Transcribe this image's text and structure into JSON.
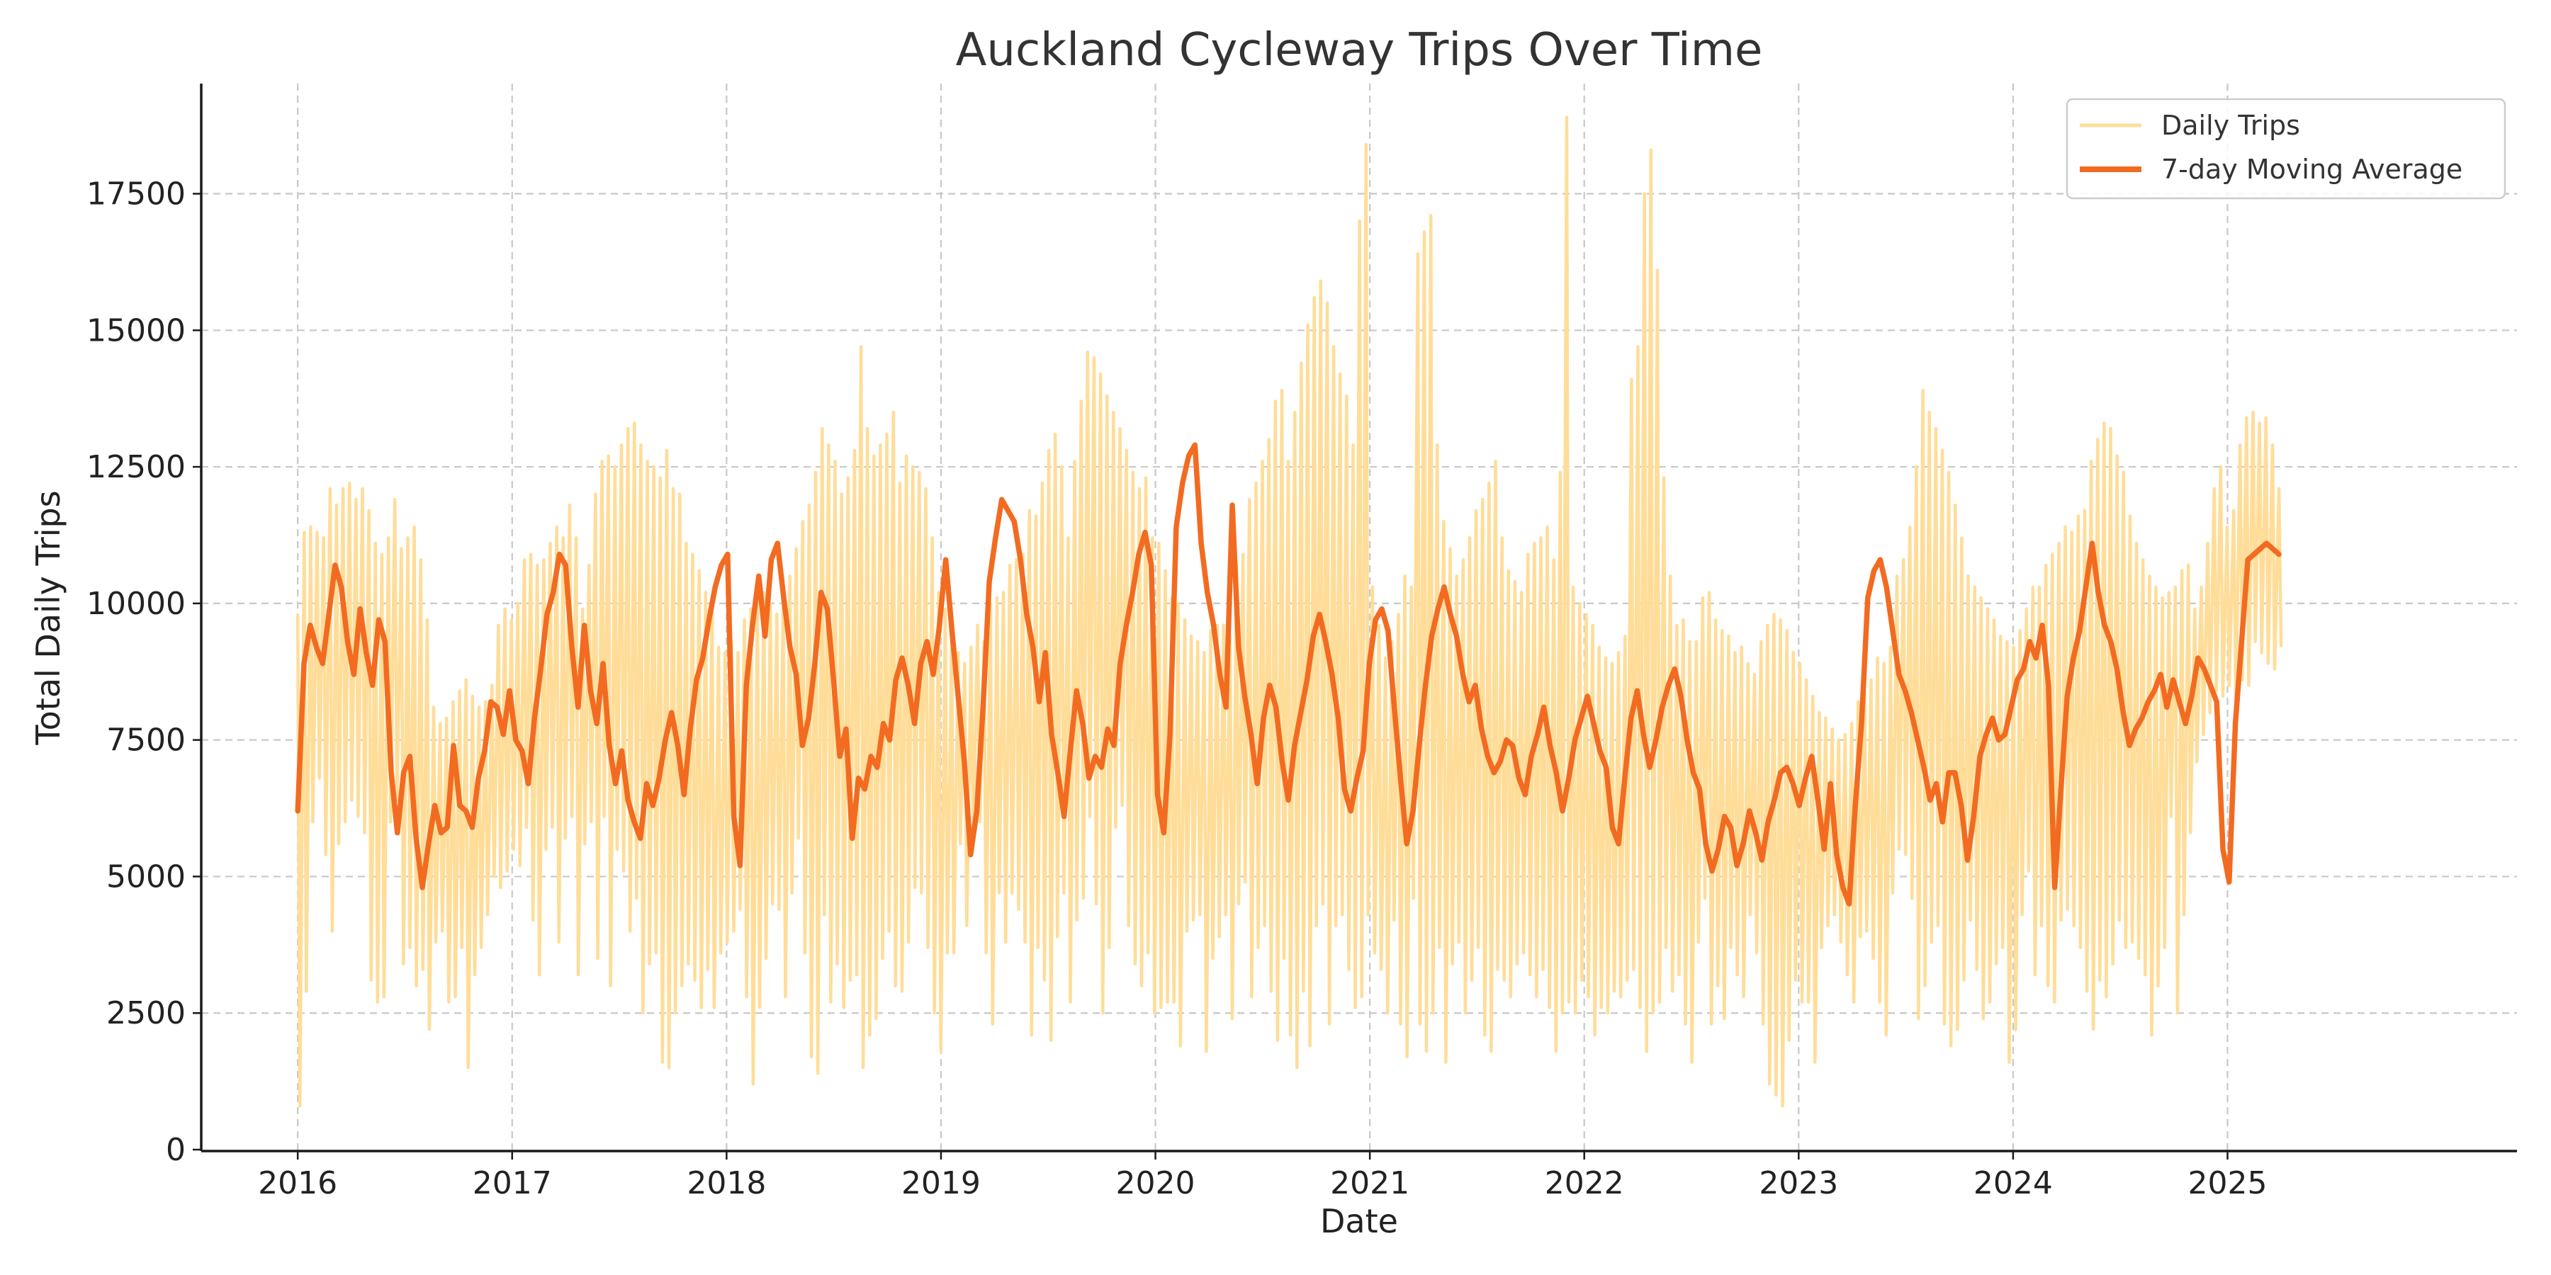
{
  "chart_data": {
    "type": "line",
    "title": "Auckland Cycleway Trips Over Time",
    "xlabel": "Date",
    "ylabel": "Total Daily Trips",
    "x_start": 2016.0,
    "x_end": 2025.24,
    "xlim": [
      2015.55,
      2026.35
    ],
    "ylim": [
      0,
      19750
    ],
    "x_ticks": [
      "2016",
      "2017",
      "2018",
      "2019",
      "2020",
      "2021",
      "2022",
      "2023",
      "2024",
      "2025"
    ],
    "y_ticks": [
      "0",
      "2500",
      "5000",
      "7500",
      "10000",
      "12500",
      "15000",
      "17500"
    ],
    "grid": true,
    "legend_position": "top-right",
    "series": [
      {
        "name": "Daily Trips",
        "color": "#ffdd99",
        "note": "daily values, shown as weekly max/min envelope",
        "weekly_max": [
          9800,
          11300,
          11400,
          11300,
          11200,
          12100,
          11800,
          12100,
          12200,
          11900,
          12100,
          11700,
          11100,
          10900,
          11200,
          11900,
          11000,
          11200,
          11400,
          10800,
          9700,
          8100,
          7800,
          7900,
          8200,
          8400,
          8600,
          8300,
          8100,
          8200,
          8500,
          9600,
          9900,
          9700,
          10000,
          10800,
          10900,
          10700,
          10800,
          11100,
          11400,
          11200,
          11800,
          11200,
          9900,
          10700,
          12000,
          12600,
          12700,
          12500,
          12900,
          13200,
          13300,
          12900,
          12600,
          12500,
          12300,
          12800,
          12100,
          12000,
          11100,
          10900,
          10600,
          10200,
          10000,
          9200,
          9100,
          9300,
          9100,
          9700,
          9900,
          10100,
          10200,
          10000,
          9800,
          10100,
          10500,
          11000,
          11500,
          11800,
          12400,
          13200,
          12900,
          12600,
          12000,
          12300,
          12800,
          14700,
          13200,
          12700,
          12900,
          13100,
          13500,
          12200,
          12700,
          12500,
          12400,
          12100,
          11200,
          10200,
          9900,
          9400,
          9100,
          8900,
          9200,
          9600,
          9300,
          10000,
          10100,
          10200,
          10700,
          10800,
          10900,
          11700,
          11600,
          12200,
          12800,
          13100,
          12500,
          11200,
          12600,
          13700,
          14600,
          14500,
          14200,
          13800,
          13500,
          13200,
          12800,
          12400,
          12100,
          12300,
          11200,
          11100,
          10600,
          10100,
          10000,
          9700,
          9400,
          9300,
          9100,
          9500,
          9600,
          9600,
          9400,
          10700,
          10900,
          11900,
          12200,
          12600,
          13000,
          13700,
          13900,
          12600,
          13500,
          14400,
          15100,
          15600,
          15900,
          15500,
          14700,
          14200,
          13800,
          12900,
          17000,
          18400,
          10300,
          9600,
          9000,
          9300,
          9800,
          10500,
          10300,
          16400,
          16800,
          17100,
          12900,
          11500,
          11000,
          10500,
          10800,
          11200,
          11700,
          11900,
          12200,
          12600,
          11200,
          10600,
          10400,
          10200,
          10900,
          11100,
          11200,
          11400,
          10800,
          12400,
          18900,
          10300,
          10000,
          9800,
          9600,
          9200,
          9000,
          8900,
          9100,
          9400,
          14100,
          14700,
          17500,
          18300,
          16100,
          12300,
          10500,
          9600,
          9700,
          9300,
          9300,
          10100,
          10200,
          9700,
          9500,
          9400,
          9100,
          9200,
          8900,
          8700,
          9300,
          9600,
          9800,
          9700,
          9500,
          9100,
          8900,
          8600,
          8300,
          8000,
          7900,
          7700,
          7500,
          7600,
          7800,
          8200,
          8400,
          8600,
          9000,
          8900,
          9200,
          10500,
          10800,
          11400,
          12500,
          13900,
          13500,
          13200,
          12800,
          12400,
          11800,
          11200,
          10500,
          10300,
          10100,
          9900,
          9700,
          9400,
          9300,
          9200,
          9500,
          9900,
          10300,
          10300,
          10700,
          10900,
          11100,
          11400,
          11300,
          11600,
          11700,
          12600,
          13000,
          13300,
          13200,
          12700,
          12400,
          11600,
          11100,
          10800,
          10500,
          10300,
          10100,
          10200,
          10300,
          10600,
          10700,
          9900,
          10300,
          11100,
          12100,
          12500,
          11400,
          11700,
          12900,
          13400,
          13500,
          13300,
          13400,
          12900,
          12100
        ],
        "weekly_min": [
          800,
          2900,
          6000,
          6800,
          5400,
          4000,
          5600,
          6000,
          6400,
          6100,
          5800,
          3100,
          2700,
          2800,
          6000,
          6400,
          3400,
          3700,
          3000,
          3300,
          2200,
          3800,
          4000,
          2700,
          2800,
          3700,
          1500,
          3200,
          3700,
          4300,
          5000,
          4800,
          5100,
          5500,
          5200,
          5900,
          4200,
          3200,
          5500,
          5900,
          3800,
          5700,
          6100,
          3200,
          5600,
          6000,
          3500,
          6100,
          3000,
          5500,
          5100,
          4000,
          4600,
          2500,
          3400,
          3600,
          1600,
          1500,
          2500,
          3000,
          3400,
          3100,
          2600,
          3300,
          2600,
          3600,
          3800,
          4000,
          4400,
          2800,
          1200,
          2600,
          3500,
          4500,
          4400,
          2800,
          4700,
          5700,
          3600,
          1700,
          1400,
          4300,
          2700,
          3400,
          2600,
          3100,
          3200,
          1500,
          2100,
          2400,
          3500,
          4000,
          3000,
          2900,
          3800,
          4800,
          4700,
          3700,
          2500,
          1800,
          3600,
          3600,
          5600,
          4100,
          5700,
          6000,
          3600,
          2300,
          4700,
          3800,
          4700,
          4400,
          3800,
          2100,
          3700,
          3100,
          2000,
          3900,
          4700,
          2700,
          4200,
          4600,
          6100,
          4500,
          2500,
          3700,
          5900,
          6300,
          4100,
          3400,
          3000,
          3600,
          2500,
          2600,
          2700,
          2700,
          1900,
          4000,
          4200,
          4300,
          1800,
          3500,
          3900,
          4300,
          2400,
          4500,
          4900,
          2800,
          3700,
          4100,
          2900,
          2000,
          3500,
          2100,
          1500,
          2900,
          1900,
          4100,
          4500,
          2300,
          4100,
          4300,
          3300,
          2600,
          2800,
          4300,
          3600,
          3300,
          2500,
          4200,
          2300,
          1700,
          4600,
          2300,
          1800,
          2500,
          3700,
          1600,
          3400,
          3800,
          2500,
          3100,
          3700,
          2100,
          1800,
          3300,
          3100,
          2800,
          3400,
          3600,
          3200,
          2800,
          3300,
          2600,
          1800,
          2500,
          2700,
          2500,
          3100,
          2800,
          2100,
          2600,
          2500,
          2900,
          2800,
          3100,
          3300,
          2600,
          1800,
          2500,
          2700,
          3700,
          2900,
          3200,
          2300,
          1600,
          3800,
          4600,
          2300,
          3000,
          2400,
          3700,
          3200,
          2800,
          4300,
          3600,
          2300,
          1200,
          1000,
          800,
          2000,
          3100,
          2700,
          2700,
          1600,
          3700,
          4100,
          4300,
          3800,
          3200,
          2700,
          3900,
          4000,
          3500,
          2700,
          2100,
          4700,
          5500,
          5400,
          4600,
          2400,
          3000,
          3800,
          4100,
          2300,
          1900,
          2200,
          3100,
          4200,
          3300,
          2400,
          2700,
          3400,
          3700,
          1600,
          2200,
          4300,
          5100,
          3200,
          4100,
          3000,
          2700,
          4200,
          4400,
          4100,
          3700,
          2900,
          2200,
          3100,
          2800,
          3400,
          4200,
          3700,
          3800,
          3500,
          3200,
          2100,
          3000,
          3700,
          6100,
          2500,
          4300,
          5800,
          7100,
          7600,
          8000,
          8400,
          8300,
          8500,
          8200,
          8600,
          8500,
          9300,
          9100,
          8900,
          8800,
          9200,
          9100,
          8700,
          8400,
          8500,
          8500,
          8200
        ]
      },
      {
        "name": "7-day Moving Average",
        "color": "#f26b21",
        "values": [
          6200,
          8900,
          9600,
          9200,
          8900,
          9800,
          10700,
          10300,
          9300,
          8700,
          9900,
          9100,
          8500,
          9700,
          9300,
          6900,
          5800,
          6900,
          7200,
          5700,
          4800,
          5600,
          6300,
          5800,
          5900,
          7400,
          6300,
          6200,
          5900,
          6800,
          7300,
          8200,
          8100,
          7600,
          8400,
          7500,
          7300,
          6700,
          7900,
          8800,
          9800,
          10200,
          10900,
          10700,
          9200,
          8100,
          9600,
          8400,
          7800,
          8900,
          7400,
          6700,
          7300,
          6400,
          6000,
          5700,
          6700,
          6300,
          6800,
          7500,
          8000,
          7400,
          6500,
          7700,
          8600,
          9000,
          9700,
          10300,
          10700,
          10900,
          6100,
          5200,
          8500,
          9600,
          10500,
          9400,
          10800,
          11100,
          10100,
          9200,
          8700,
          7400,
          7900,
          8900,
          10200,
          9900,
          8600,
          7200,
          7700,
          5700,
          6800,
          6600,
          7200,
          7000,
          7800,
          7500,
          8600,
          9000,
          8500,
          7800,
          8900,
          9300,
          8700,
          9600,
          10800,
          9500,
          8300,
          7100,
          5400,
          6200,
          8100,
          10400,
          11200,
          11900,
          11700,
          11500,
          10800,
          9800,
          9200,
          8200,
          9100,
          7600,
          6900,
          6100,
          7300,
          8400,
          7800,
          6800,
          7200,
          7000,
          7700,
          7400,
          8900,
          9600,
          10200,
          10900,
          11300,
          10700,
          6500,
          5800,
          7600,
          11400,
          12200,
          12700,
          12900,
          11100,
          10200,
          9600,
          8700,
          8100,
          11800,
          9200,
          8300,
          7600,
          6700,
          7900,
          8500,
          8100,
          7100,
          6400,
          7400,
          8000,
          8600,
          9400,
          9800,
          9300,
          8700,
          7900,
          6600,
          6200,
          6800,
          7300,
          8900,
          9700,
          9900,
          9500,
          8100,
          6800,
          5600,
          6200,
          7400,
          8500,
          9400,
          9900,
          10300,
          9800,
          9400,
          8700,
          8200,
          8500,
          7700,
          7200,
          6900,
          7100,
          7500,
          7400,
          6800,
          6500,
          7200,
          7600,
          8100,
          7400,
          6900,
          6200,
          6800,
          7500,
          7900,
          8300,
          7800,
          7300,
          7000,
          5900,
          5600,
          6800,
          7900,
          8400,
          7600,
          7000,
          7500,
          8100,
          8500,
          8800,
          8300,
          7500,
          6900,
          6600,
          5600,
          5100,
          5500,
          6100,
          5900,
          5200,
          5600,
          6200,
          5800,
          5300,
          6000,
          6400,
          6900,
          7000,
          6700,
          6300,
          6800,
          7200,
          6400,
          5500,
          6700,
          5400,
          4800,
          4500,
          6300,
          7800,
          10100,
          10600,
          10800,
          10300,
          9500,
          8700,
          8400,
          8000,
          7500,
          7000,
          6400,
          6700,
          6000,
          6900,
          6900,
          6300,
          5300,
          6100,
          7200,
          7600,
          7900,
          7500,
          7600,
          8100,
          8600,
          8800,
          9300,
          9000,
          9600,
          8500,
          4800,
          6600,
          8300,
          9000,
          9500,
          10300,
          11100,
          10200,
          9600,
          9300,
          8800,
          8000,
          7400,
          7700,
          7900,
          8200,
          8400,
          8700,
          8100,
          8600,
          8200,
          7800,
          8300,
          9000,
          8800,
          8500,
          8200,
          5500,
          4900,
          7800,
          9300,
          10800,
          10900,
          11000,
          11100,
          11000,
          10900
        ]
      }
    ]
  }
}
